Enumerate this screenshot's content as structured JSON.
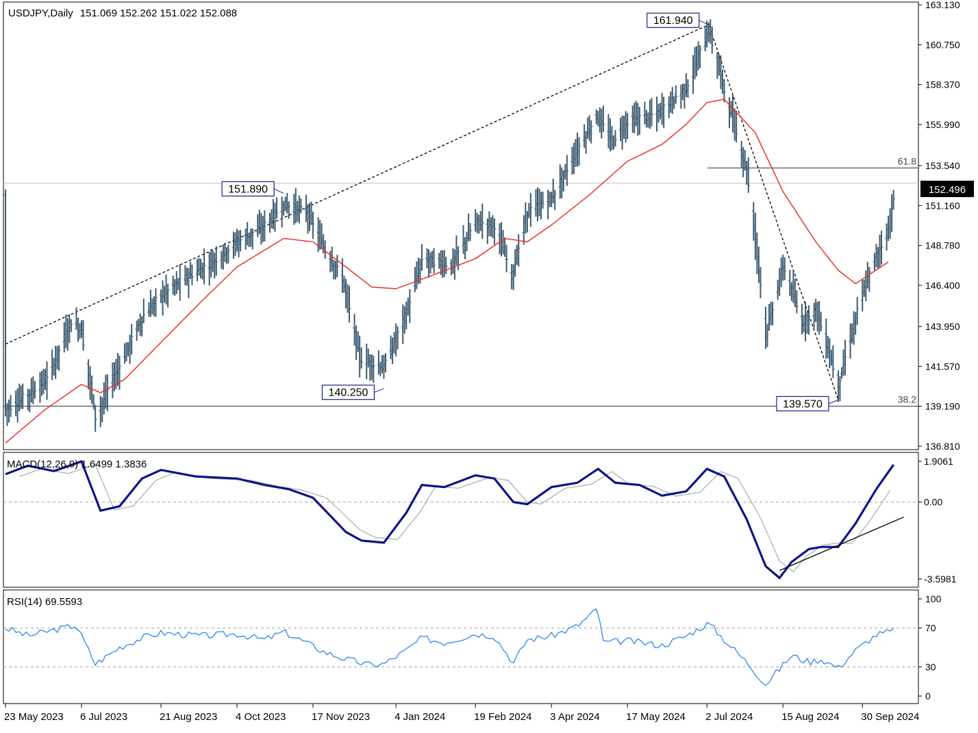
{
  "header": {
    "symbol": "USDJPY,Daily",
    "ohlc": "151.069 152.262 151.022 152.088"
  },
  "macd_header": "MACD(12,26,9) 1.6499 1.3836",
  "rsi_header": "RSI(14) 69.5593",
  "chart_data": [
    {
      "type": "candlestick",
      "symbol": "USDJPY",
      "timeframe": "Daily",
      "ylim": [
        136.81,
        163.13
      ],
      "price_ticks": [
        "163.130",
        "160.750",
        "158.370",
        "155.990",
        "153.540",
        "151.160",
        "148.780",
        "146.400",
        "143.950",
        "141.570",
        "139.190",
        "136.810"
      ],
      "current_price": "152.496",
      "x_ticks": [
        "23 May 2023",
        "6 Jul 2023",
        "21 Aug 2023",
        "4 Oct 2023",
        "17 Nov 2023",
        "4 Jan 2024",
        "19 Feb 2024",
        "3 Apr 2024",
        "17 May 2024",
        "2 Jul 2024",
        "15 Aug 2024",
        "30 Sep 2024"
      ],
      "annotations": [
        {
          "text": "151.890",
          "value": 151.89,
          "date": "2023-10-31"
        },
        {
          "text": "140.250",
          "value": 140.25,
          "date": "2023-12-28"
        },
        {
          "text": "161.940",
          "value": 161.94,
          "date": "2024-07-03"
        },
        {
          "text": "139.570",
          "value": 139.57,
          "date": "2024-09-16"
        }
      ],
      "fib_levels": [
        {
          "label": "61.8",
          "value": 153.4
        },
        {
          "label": "38.2",
          "value": 139.2
        }
      ],
      "moving_average_points": [
        [
          "2023-05-23",
          137.0
        ],
        [
          "2023-06-15",
          139.0
        ],
        [
          "2023-07-06",
          140.5
        ],
        [
          "2023-07-17",
          140.0
        ],
        [
          "2023-07-31",
          140.8
        ],
        [
          "2023-08-21",
          143.0
        ],
        [
          "2023-09-14",
          145.5
        ],
        [
          "2023-10-04",
          147.5
        ],
        [
          "2023-10-31",
          149.2
        ],
        [
          "2023-11-17",
          149.0
        ],
        [
          "2023-12-06",
          147.5
        ],
        [
          "2023-12-21",
          146.3
        ],
        [
          "2024-01-04",
          146.2
        ],
        [
          "2024-01-25",
          147.0
        ],
        [
          "2024-02-19",
          148.0
        ],
        [
          "2024-03-07",
          149.2
        ],
        [
          "2024-03-20",
          149.0
        ],
        [
          "2024-04-03",
          150.0
        ],
        [
          "2024-04-25",
          151.8
        ],
        [
          "2024-05-17",
          153.8
        ],
        [
          "2024-06-06",
          154.8
        ],
        [
          "2024-06-20",
          156.0
        ],
        [
          "2024-07-02",
          157.3
        ],
        [
          "2024-07-12",
          157.5
        ],
        [
          "2024-07-30",
          155.5
        ],
        [
          "2024-08-15",
          152.0
        ],
        [
          "2024-09-03",
          149.0
        ],
        [
          "2024-09-16",
          147.3
        ],
        [
          "2024-09-26",
          146.5
        ],
        [
          "2024-10-15",
          147.8
        ]
      ],
      "price_path": [
        [
          "2023-05-23",
          139.0
        ],
        [
          "2023-06-05",
          139.9
        ],
        [
          "2023-06-16",
          140.8
        ],
        [
          "2023-06-30",
          144.3
        ],
        [
          "2023-07-06",
          143.7
        ],
        [
          "2023-07-14",
          138.5
        ],
        [
          "2023-07-24",
          140.8
        ],
        [
          "2023-08-01",
          142.5
        ],
        [
          "2023-08-10",
          144.5
        ],
        [
          "2023-08-21",
          145.8
        ],
        [
          "2023-09-05",
          146.9
        ],
        [
          "2023-09-20",
          147.8
        ],
        [
          "2023-10-04",
          149.0
        ],
        [
          "2023-10-18",
          149.8
        ],
        [
          "2023-10-31",
          151.2
        ],
        [
          "2023-11-13",
          150.8
        ],
        [
          "2023-11-24",
          148.5
        ],
        [
          "2023-12-04",
          146.8
        ],
        [
          "2023-12-14",
          142.0
        ],
        [
          "2023-12-28",
          141.5
        ],
        [
          "2024-01-10",
          144.8
        ],
        [
          "2024-01-19",
          148.0
        ],
        [
          "2024-02-05",
          147.6
        ],
        [
          "2024-02-19",
          150.2
        ],
        [
          "2024-03-01",
          150.0
        ],
        [
          "2024-03-11",
          147.0
        ],
        [
          "2024-03-20",
          150.8
        ],
        [
          "2024-04-03",
          151.6
        ],
        [
          "2024-04-18",
          154.5
        ],
        [
          "2024-04-29",
          156.5
        ],
        [
          "2024-05-08",
          155.0
        ],
        [
          "2024-05-17",
          156.2
        ],
        [
          "2024-06-03",
          156.6
        ],
        [
          "2024-06-20",
          158.2
        ],
        [
          "2024-07-03",
          161.6
        ],
        [
          "2024-07-12",
          158.0
        ],
        [
          "2024-07-25",
          153.2
        ],
        [
          "2024-08-02",
          146.5
        ],
        [
          "2024-08-05",
          143.5
        ],
        [
          "2024-08-15",
          147.6
        ],
        [
          "2024-08-26",
          144.2
        ],
        [
          "2024-09-03",
          145.0
        ],
        [
          "2024-09-16",
          140.5
        ],
        [
          "2024-09-26",
          144.5
        ],
        [
          "2024-10-02",
          146.5
        ],
        [
          "2024-10-08",
          148.2
        ],
        [
          "2024-10-15",
          149.8
        ],
        [
          "2024-10-18",
          151.8
        ]
      ],
      "trend_lines": [
        {
          "from": [
            "2023-05-23",
            142.9
          ],
          "to": [
            "2024-07-03",
            161.94
          ]
        },
        {
          "from": [
            "2024-07-03",
            161.94
          ],
          "to": [
            "2024-09-16",
            139.57
          ]
        }
      ]
    },
    {
      "type": "line",
      "name": "MACD(12,26,9)",
      "ylim": [
        -3.5981,
        1.9061
      ],
      "y_ticks": [
        "1.9061",
        "0.00",
        "-3.5981"
      ],
      "macd_points": [
        [
          "2023-05-23",
          1.3
        ],
        [
          "2023-06-05",
          1.7
        ],
        [
          "2023-06-20",
          1.45
        ],
        [
          "2023-07-06",
          1.9
        ],
        [
          "2023-07-17",
          -0.4
        ],
        [
          "2023-07-28",
          -0.2
        ],
        [
          "2023-08-10",
          1.1
        ],
        [
          "2023-08-21",
          1.5
        ],
        [
          "2023-09-10",
          1.2
        ],
        [
          "2023-10-04",
          1.1
        ],
        [
          "2023-10-20",
          0.8
        ],
        [
          "2023-11-03",
          0.6
        ],
        [
          "2023-11-17",
          0.2
        ],
        [
          "2023-12-06",
          -1.4
        ],
        [
          "2023-12-15",
          -1.8
        ],
        [
          "2023-12-28",
          -1.9
        ],
        [
          "2024-01-10",
          -0.5
        ],
        [
          "2024-01-19",
          0.8
        ],
        [
          "2024-02-01",
          0.7
        ],
        [
          "2024-02-19",
          1.25
        ],
        [
          "2024-03-01",
          1.1
        ],
        [
          "2024-03-12",
          0.0
        ],
        [
          "2024-03-20",
          -0.1
        ],
        [
          "2024-04-03",
          0.7
        ],
        [
          "2024-04-18",
          0.9
        ],
        [
          "2024-04-30",
          1.55
        ],
        [
          "2024-05-10",
          0.9
        ],
        [
          "2024-05-24",
          0.8
        ],
        [
          "2024-06-06",
          0.3
        ],
        [
          "2024-06-20",
          0.5
        ],
        [
          "2024-07-02",
          1.55
        ],
        [
          "2024-07-12",
          1.2
        ],
        [
          "2024-07-25",
          -0.8
        ],
        [
          "2024-08-05",
          -3.0
        ],
        [
          "2024-08-13",
          -3.55
        ],
        [
          "2024-08-20",
          -2.8
        ],
        [
          "2024-08-30",
          -2.2
        ],
        [
          "2024-09-06",
          -2.1
        ],
        [
          "2024-09-16",
          -2.1
        ],
        [
          "2024-09-26",
          -1.0
        ],
        [
          "2024-10-08",
          0.6
        ],
        [
          "2024-10-18",
          1.75
        ]
      ],
      "support_line": {
        "from": [
          "2024-08-13",
          -3.2
        ],
        "to": [
          "2024-10-24",
          -0.7
        ]
      }
    },
    {
      "type": "line",
      "name": "RSI(14)",
      "ylim": [
        0,
        100
      ],
      "y_ticks": [
        "100",
        "70",
        "30",
        "0"
      ],
      "levels": [
        70,
        30
      ],
      "rsi_points": [
        [
          "2023-05-23",
          70
        ],
        [
          "2023-06-05",
          62
        ],
        [
          "2023-06-20",
          68
        ],
        [
          "2023-07-03",
          73
        ],
        [
          "2023-07-14",
          33
        ],
        [
          "2023-07-28",
          50
        ],
        [
          "2023-08-10",
          60
        ],
        [
          "2023-08-21",
          65
        ],
        [
          "2023-09-14",
          62
        ],
        [
          "2023-10-04",
          64
        ],
        [
          "2023-10-20",
          58
        ],
        [
          "2023-10-31",
          66
        ],
        [
          "2023-11-13",
          55
        ],
        [
          "2023-11-24",
          45
        ],
        [
          "2023-12-06",
          38
        ],
        [
          "2023-12-20",
          32
        ],
        [
          "2023-12-28",
          33
        ],
        [
          "2024-01-10",
          47
        ],
        [
          "2024-01-19",
          60
        ],
        [
          "2024-02-01",
          55
        ],
        [
          "2024-02-19",
          64
        ],
        [
          "2024-03-01",
          62
        ],
        [
          "2024-03-12",
          34
        ],
        [
          "2024-03-20",
          58
        ],
        [
          "2024-04-03",
          62
        ],
        [
          "2024-04-18",
          72
        ],
        [
          "2024-04-30",
          90
        ],
        [
          "2024-05-03",
          55
        ],
        [
          "2024-05-17",
          57
        ],
        [
          "2024-06-06",
          52
        ],
        [
          "2024-06-20",
          62
        ],
        [
          "2024-07-03",
          75
        ],
        [
          "2024-07-12",
          58
        ],
        [
          "2024-07-25",
          35
        ],
        [
          "2024-08-05",
          12
        ],
        [
          "2024-08-20",
          42
        ],
        [
          "2024-08-30",
          35
        ],
        [
          "2024-09-06",
          38
        ],
        [
          "2024-09-16",
          29
        ],
        [
          "2024-09-26",
          47
        ],
        [
          "2024-10-08",
          63
        ],
        [
          "2024-10-18",
          67
        ]
      ]
    }
  ]
}
